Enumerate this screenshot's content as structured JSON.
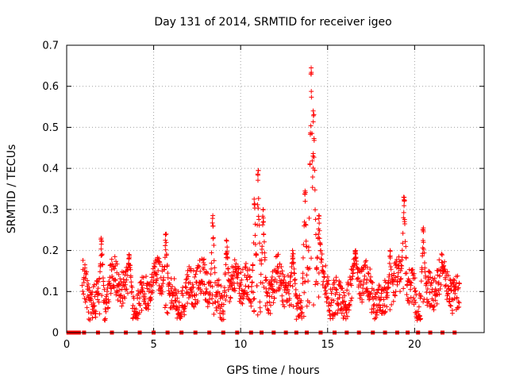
{
  "chart_data": {
    "type": "scatter",
    "title": "Day 131 of 2014, SRMTID for receiver igeo",
    "xlabel": "GPS time / hours",
    "ylabel": "SRMTID / TECUs",
    "xlim": [
      0,
      24
    ],
    "ylim": [
      0,
      0.7
    ],
    "xticks": [
      0,
      5,
      10,
      15,
      20
    ],
    "yticks": [
      0,
      0.1,
      0.2,
      0.3,
      0.4,
      0.5,
      0.6,
      0.7
    ],
    "xtick_labels": [
      "0",
      "5",
      "10",
      "15",
      "20"
    ],
    "ytick_labels": [
      "0",
      "0.1",
      "0.2",
      "0.3",
      "0.4",
      "0.5",
      "0.6",
      "0.7"
    ],
    "grid": true,
    "marker": "+",
    "color": "#ff0000",
    "x_range_data": [
      0.9,
      22.6
    ],
    "baseline_y": 0.1,
    "spikes": [
      {
        "x": 2.0,
        "y": 0.23
      },
      {
        "x": 3.6,
        "y": 0.19
      },
      {
        "x": 5.7,
        "y": 0.24
      },
      {
        "x": 8.4,
        "y": 0.285
      },
      {
        "x": 9.2,
        "y": 0.225
      },
      {
        "x": 10.8,
        "y": 0.325
      },
      {
        "x": 11.0,
        "y": 0.395
      },
      {
        "x": 11.3,
        "y": 0.3
      },
      {
        "x": 13.0,
        "y": 0.2
      },
      {
        "x": 13.7,
        "y": 0.345
      },
      {
        "x": 14.05,
        "y": 0.645
      },
      {
        "x": 14.2,
        "y": 0.54
      },
      {
        "x": 14.5,
        "y": 0.285
      },
      {
        "x": 16.6,
        "y": 0.2
      },
      {
        "x": 18.6,
        "y": 0.2
      },
      {
        "x": 19.4,
        "y": 0.33
      },
      {
        "x": 20.5,
        "y": 0.255
      },
      {
        "x": 21.6,
        "y": 0.16
      }
    ],
    "zero_markers_x": [
      0.1,
      0.2,
      0.3,
      0.4,
      0.5,
      0.6,
      0.7,
      1.0,
      1.8,
      2.6,
      3.4,
      4.2,
      5.0,
      5.8,
      6.6,
      7.4,
      8.2,
      9.0,
      9.8,
      10.6,
      11.2,
      11.9,
      12.6,
      13.2,
      13.8,
      14.6,
      15.4,
      16.1,
      16.8,
      17.6,
      18.3,
      19.0,
      19.6,
      20.2,
      20.9,
      21.6,
      22.3
    ]
  }
}
